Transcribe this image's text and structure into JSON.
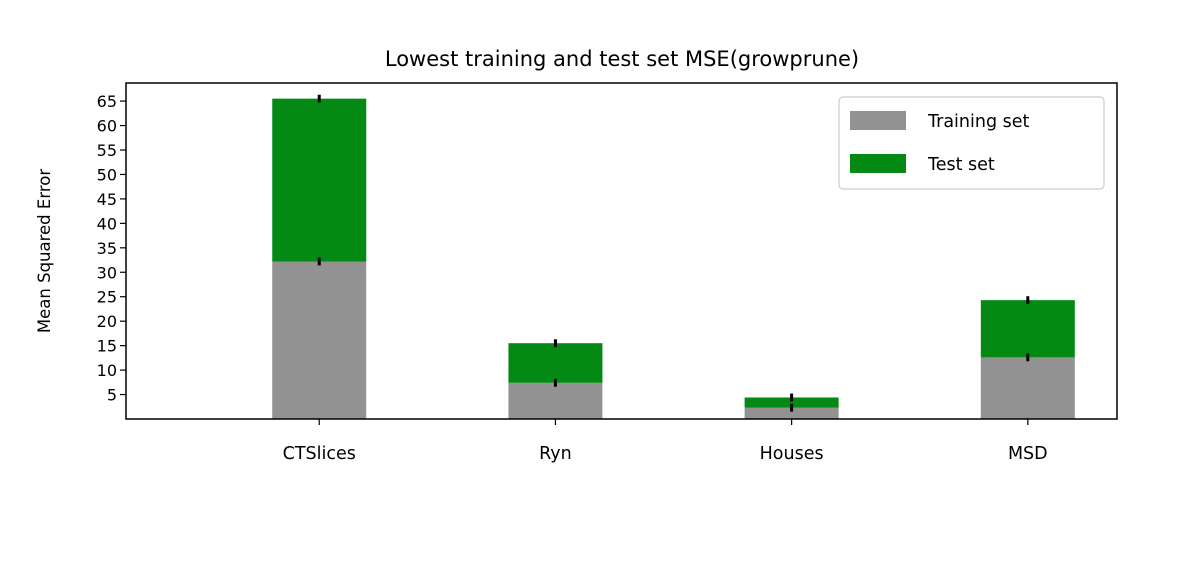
{
  "chart_data": {
    "type": "bar",
    "stacked": true,
    "title": "Lowest training and test set MSE(growprune)",
    "xlabel": "",
    "ylabel": "Mean Squared Error",
    "categories": [
      "CTSlices",
      "Ryn",
      "Houses",
      "MSD"
    ],
    "series": [
      {
        "name": "Training set",
        "color": "#929292",
        "values": [
          32.2,
          7.4,
          2.3,
          12.6
        ],
        "errors": [
          0.8,
          0.8,
          0.8,
          0.8
        ]
      },
      {
        "name": "Test set",
        "color": "#048a14",
        "values": [
          33.3,
          8.1,
          2.1,
          11.7
        ],
        "errors": [
          0.8,
          0.8,
          0.8,
          0.8
        ]
      }
    ],
    "yticks": [
      5,
      10,
      15,
      20,
      25,
      30,
      35,
      40,
      45,
      50,
      55,
      60,
      65
    ],
    "ylim": [
      0,
      68.7
    ],
    "grid": false,
    "legend_position": "top-right"
  }
}
